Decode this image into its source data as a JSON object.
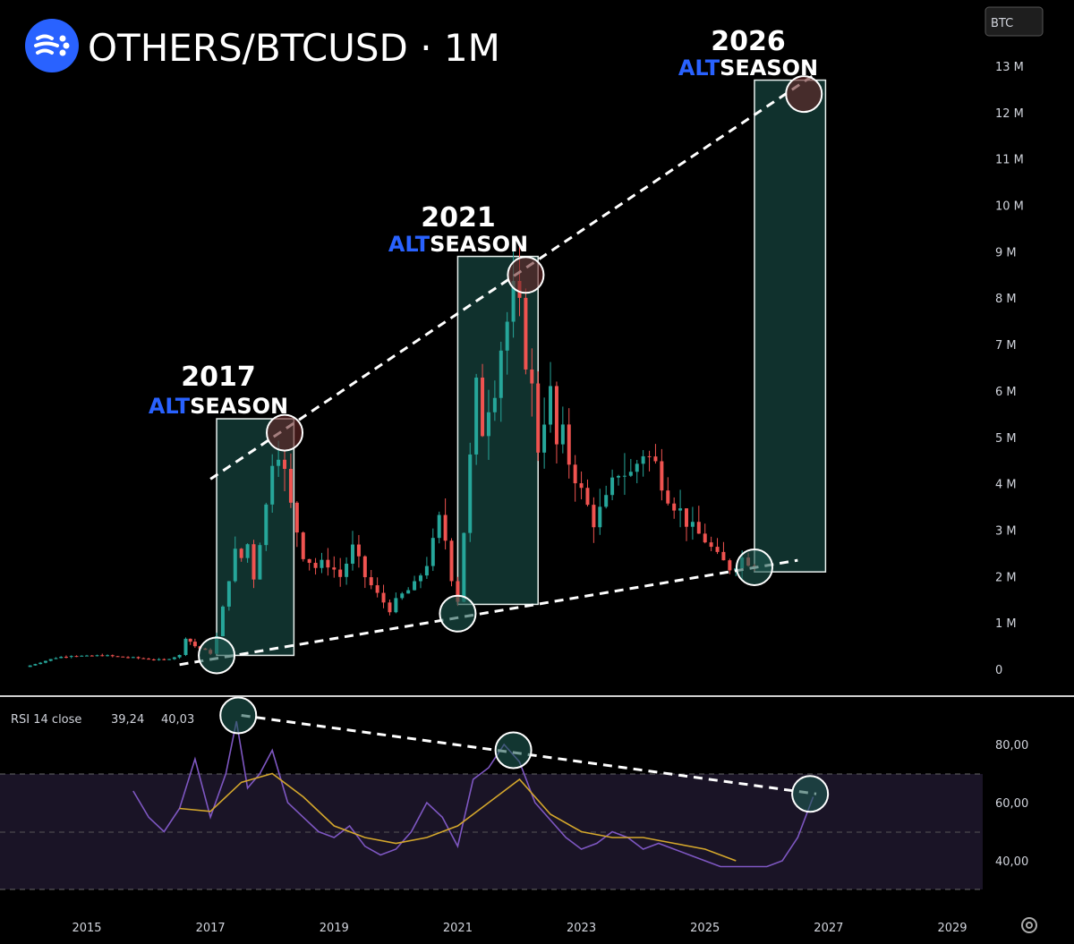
{
  "header": {
    "title": "OTHERS/BTCUSD · 1M",
    "currency_badge": "BTC",
    "logo_icon": "tradingview-waves-icon"
  },
  "colors": {
    "background": "#000000",
    "up_candle": "#26a69a",
    "down_candle": "#ef5350",
    "highlight_box": "#1e5a52",
    "alt_word": "#2962ff",
    "rsi_line": "#7e57c2",
    "rsi_ma": "#d4a72c",
    "rsi_band": "#1a1426"
  },
  "annotations": {
    "s2017": {
      "year": "2017",
      "alt": "ALT",
      "season": "SEASON"
    },
    "s2021": {
      "year": "2021",
      "alt": "ALT",
      "season": "SEASON"
    },
    "s2026": {
      "year": "2026",
      "alt": "ALT",
      "season": "SEASON"
    }
  },
  "rsi": {
    "label": "RSI 14 close",
    "value": "39,24",
    "ma_value": "40,03",
    "y_ticks": [
      "80,00",
      "60,00",
      "40,00"
    ]
  },
  "price_axis": {
    "ticks": [
      "13 M",
      "12 M",
      "11 M",
      "10 M",
      "9 M",
      "8 M",
      "7 M",
      "6 M",
      "5 M",
      "4 M",
      "3 M",
      "2 M",
      "1 M",
      "0"
    ]
  },
  "time_axis": {
    "ticks": [
      "2015",
      "2017",
      "2019",
      "2021",
      "2023",
      "2025",
      "2027",
      "2029"
    ]
  },
  "settings_icon": "gear-icon",
  "chart_data": {
    "type": "candlestick",
    "title": "OTHERS/BTCUSD · 1M",
    "y_unit": "BTC",
    "ylim": [
      0,
      13.5
    ],
    "xlim": [
      2014.0,
      2029.8
    ],
    "close_series": [
      [
        2014.0,
        0.05
      ],
      [
        2014.25,
        0.15
      ],
      [
        2014.5,
        0.25
      ],
      [
        2014.75,
        0.3
      ],
      [
        2015.0,
        0.28
      ],
      [
        2015.25,
        0.3
      ],
      [
        2015.5,
        0.27
      ],
      [
        2015.75,
        0.25
      ],
      [
        2016.0,
        0.22
      ],
      [
        2016.25,
        0.2
      ],
      [
        2016.5,
        0.3
      ],
      [
        2016.6,
        0.7
      ],
      [
        2016.75,
        0.5
      ],
      [
        2017.0,
        0.35
      ],
      [
        2017.1,
        0.7
      ],
      [
        2017.2,
        1.3
      ],
      [
        2017.3,
        2.0
      ],
      [
        2017.4,
        2.5
      ],
      [
        2017.5,
        2.4
      ],
      [
        2017.6,
        2.7
      ],
      [
        2017.7,
        2.0
      ],
      [
        2017.8,
        2.8
      ],
      [
        2017.9,
        3.5
      ],
      [
        2018.0,
        4.6
      ],
      [
        2018.1,
        4.8
      ],
      [
        2018.2,
        4.2
      ],
      [
        2018.3,
        3.5
      ],
      [
        2018.4,
        3.0
      ],
      [
        2018.5,
        2.5
      ],
      [
        2018.7,
        2.2
      ],
      [
        2018.9,
        2.3
      ],
      [
        2019.1,
        2.0
      ],
      [
        2019.3,
        2.6
      ],
      [
        2019.5,
        2.0
      ],
      [
        2019.7,
        1.6
      ],
      [
        2019.9,
        1.3
      ],
      [
        2020.1,
        1.6
      ],
      [
        2020.3,
        1.8
      ],
      [
        2020.5,
        2.3
      ],
      [
        2020.6,
        2.7
      ],
      [
        2020.7,
        3.2
      ],
      [
        2020.8,
        2.8
      ],
      [
        2020.9,
        2.0
      ],
      [
        2021.0,
        1.5
      ],
      [
        2021.1,
        3.0
      ],
      [
        2021.2,
        4.5
      ],
      [
        2021.3,
        6.0
      ],
      [
        2021.4,
        5.2
      ],
      [
        2021.5,
        5.8
      ],
      [
        2021.6,
        6.2
      ],
      [
        2021.7,
        7.0
      ],
      [
        2021.8,
        7.5
      ],
      [
        2021.9,
        8.0
      ],
      [
        2022.0,
        7.6
      ],
      [
        2022.1,
        6.8
      ],
      [
        2022.2,
        6.0
      ],
      [
        2022.3,
        4.8
      ],
      [
        2022.4,
        5.5
      ],
      [
        2022.5,
        5.9
      ],
      [
        2022.6,
        4.8
      ],
      [
        2022.7,
        5.0
      ],
      [
        2022.8,
        4.5
      ],
      [
        2022.9,
        4.2
      ],
      [
        2023.0,
        3.8
      ],
      [
        2023.2,
        3.2
      ],
      [
        2023.4,
        3.6
      ],
      [
        2023.6,
        4.3
      ],
      [
        2023.8,
        4.2
      ],
      [
        2024.0,
        4.7
      ],
      [
        2024.2,
        4.4
      ],
      [
        2024.4,
        3.8
      ],
      [
        2024.6,
        3.4
      ],
      [
        2024.8,
        3.0
      ],
      [
        2025.0,
        2.8
      ],
      [
        2025.2,
        2.4
      ],
      [
        2025.4,
        2.2
      ],
      [
        2025.6,
        2.4
      ],
      [
        2025.8,
        2.3
      ]
    ],
    "trendlines": [
      {
        "name": "upper resistance",
        "from": [
          2017.0,
          4.1
        ],
        "to": [
          2026.75,
          12.8
        ]
      },
      {
        "name": "lower support",
        "from": [
          2016.5,
          0.1
        ],
        "to": [
          2026.5,
          2.35
        ]
      }
    ],
    "highlight_ranges": [
      {
        "label": "2017 ALTSEASON",
        "x": [
          2017.1,
          2018.35
        ],
        "y": [
          0.3,
          5.4
        ]
      },
      {
        "label": "2021 ALTSEASON",
        "x": [
          2021.0,
          2022.3
        ],
        "y": [
          1.4,
          8.9
        ]
      },
      {
        "label": "2026 ALTSEASON",
        "x": [
          2025.8,
          2026.95
        ],
        "y": [
          2.1,
          12.7
        ]
      }
    ],
    "rsi_series": [
      [
        2015.75,
        64
      ],
      [
        2016.0,
        55
      ],
      [
        2016.25,
        50
      ],
      [
        2016.5,
        58
      ],
      [
        2016.75,
        75
      ],
      [
        2017.0,
        55
      ],
      [
        2017.25,
        70
      ],
      [
        2017.42,
        88
      ],
      [
        2017.6,
        65
      ],
      [
        2017.8,
        70
      ],
      [
        2018.0,
        78
      ],
      [
        2018.25,
        60
      ],
      [
        2018.5,
        55
      ],
      [
        2018.75,
        50
      ],
      [
        2019.0,
        48
      ],
      [
        2019.25,
        52
      ],
      [
        2019.5,
        45
      ],
      [
        2019.75,
        42
      ],
      [
        2020.0,
        44
      ],
      [
        2020.25,
        50
      ],
      [
        2020.5,
        60
      ],
      [
        2020.75,
        55
      ],
      [
        2021.0,
        45
      ],
      [
        2021.25,
        68
      ],
      [
        2021.5,
        72
      ],
      [
        2021.75,
        80
      ],
      [
        2022.0,
        74
      ],
      [
        2022.25,
        60
      ],
      [
        2022.5,
        54
      ],
      [
        2022.75,
        48
      ],
      [
        2023.0,
        44
      ],
      [
        2023.25,
        46
      ],
      [
        2023.5,
        50
      ],
      [
        2023.75,
        48
      ],
      [
        2024.0,
        44
      ],
      [
        2024.25,
        46
      ],
      [
        2024.5,
        44
      ],
      [
        2024.75,
        42
      ],
      [
        2025.0,
        40
      ],
      [
        2025.25,
        38
      ],
      [
        2025.5,
        38
      ],
      [
        2025.75,
        38
      ],
      [
        2026.0,
        38
      ],
      [
        2026.25,
        40
      ],
      [
        2026.5,
        48
      ],
      [
        2026.75,
        62
      ]
    ],
    "rsi_ma_series": [
      [
        2016.5,
        58
      ],
      [
        2017.0,
        57
      ],
      [
        2017.5,
        67
      ],
      [
        2018.0,
        70
      ],
      [
        2018.5,
        62
      ],
      [
        2019.0,
        52
      ],
      [
        2019.5,
        48
      ],
      [
        2020.0,
        46
      ],
      [
        2020.5,
        48
      ],
      [
        2021.0,
        52
      ],
      [
        2021.5,
        60
      ],
      [
        2022.0,
        68
      ],
      [
        2022.5,
        56
      ],
      [
        2023.0,
        50
      ],
      [
        2023.5,
        48
      ],
      [
        2024.0,
        48
      ],
      [
        2024.5,
        46
      ],
      [
        2025.0,
        44
      ],
      [
        2025.5,
        40
      ]
    ],
    "rsi_bands": [
      70,
      50,
      30
    ],
    "rsi_trendline": {
      "from": [
        2017.5,
        90
      ],
      "to": [
        2026.8,
        63
      ]
    }
  }
}
